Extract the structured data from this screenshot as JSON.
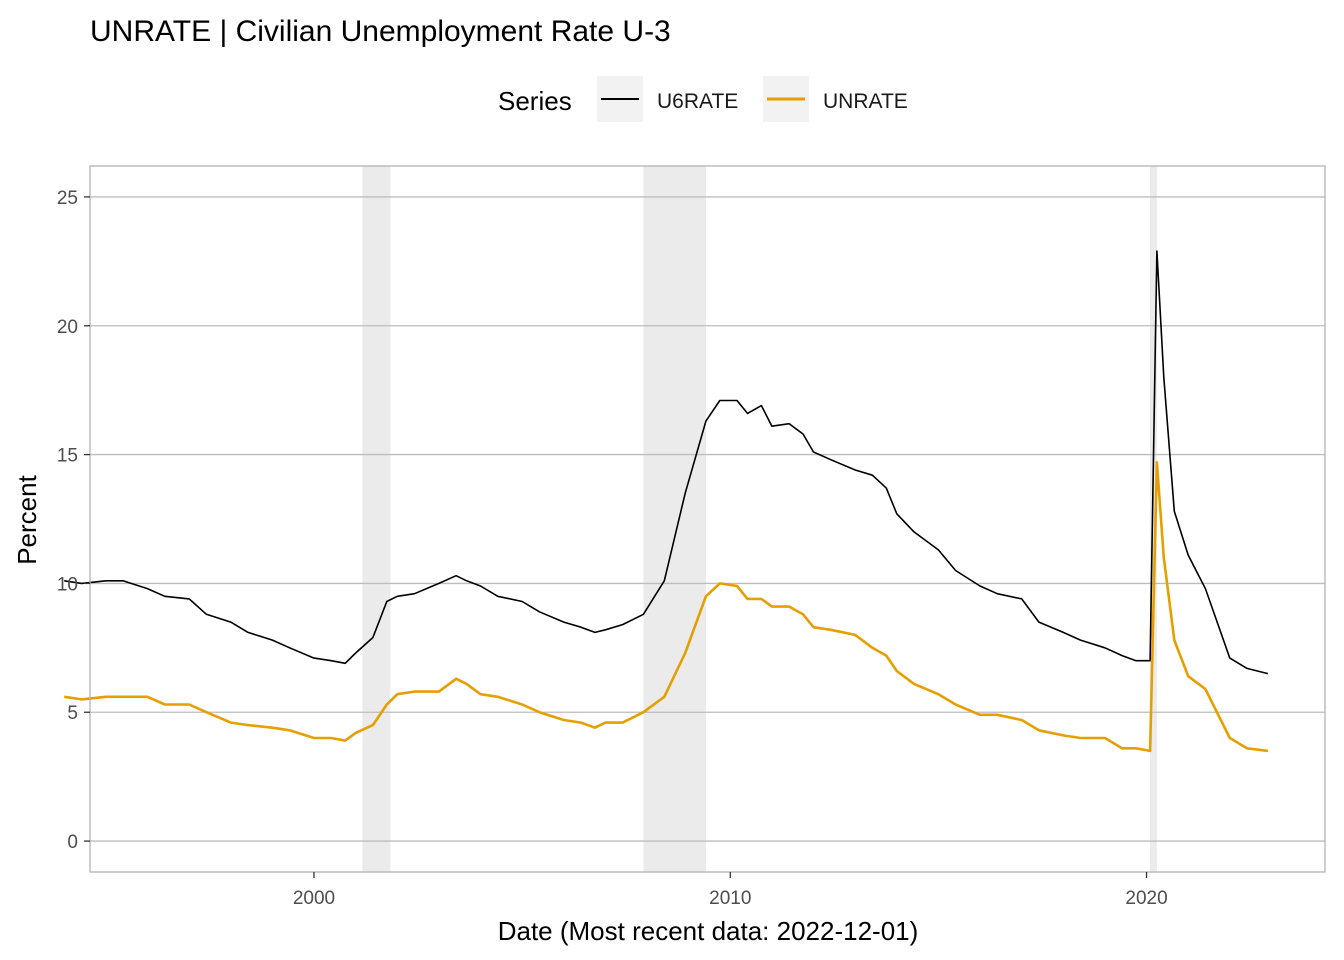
{
  "chart_data": {
    "type": "line",
    "title": "UNRATE | Civilian Unemployment Rate U-3",
    "xlabel": "Date (Most recent data: 2022-12-01)",
    "ylabel": "Percent",
    "legend": {
      "title": "Series",
      "placement": "top"
    },
    "xlim": [
      "1994-08-15",
      "2024-04-15"
    ],
    "ylim": [
      -1.2,
      26.2
    ],
    "x_ticks": [
      {
        "date": "2000-01-01",
        "label": "2000"
      },
      {
        "date": "2010-01-01",
        "label": "2010"
      },
      {
        "date": "2020-01-01",
        "label": "2020"
      }
    ],
    "y_ticks": [
      0,
      5,
      10,
      15,
      20,
      25
    ],
    "grid": true,
    "recessions": [
      {
        "start": "2001-03-01",
        "end": "2001-11-01"
      },
      {
        "start": "2007-12-01",
        "end": "2009-06-01"
      },
      {
        "start": "2020-02-01",
        "end": "2020-04-01"
      }
    ],
    "series": [
      {
        "name": "U6RATE",
        "color": "#000000",
        "points": [
          [
            "1994-01-01",
            10.1
          ],
          [
            "1994-06-01",
            10.0
          ],
          [
            "1995-01-01",
            10.1
          ],
          [
            "1995-06-01",
            10.1
          ],
          [
            "1996-01-01",
            9.8
          ],
          [
            "1996-06-01",
            9.5
          ],
          [
            "1997-01-01",
            9.4
          ],
          [
            "1997-06-01",
            8.8
          ],
          [
            "1998-01-01",
            8.5
          ],
          [
            "1998-06-01",
            8.1
          ],
          [
            "1999-01-01",
            7.8
          ],
          [
            "1999-06-01",
            7.5
          ],
          [
            "2000-01-01",
            7.1
          ],
          [
            "2000-06-01",
            7.0
          ],
          [
            "2000-10-01",
            6.9
          ],
          [
            "2001-01-01",
            7.3
          ],
          [
            "2001-06-01",
            7.9
          ],
          [
            "2001-10-01",
            9.3
          ],
          [
            "2002-01-01",
            9.5
          ],
          [
            "2002-06-01",
            9.6
          ],
          [
            "2003-01-01",
            10.0
          ],
          [
            "2003-06-01",
            10.3
          ],
          [
            "2003-09-01",
            10.1
          ],
          [
            "2004-01-01",
            9.9
          ],
          [
            "2004-06-01",
            9.5
          ],
          [
            "2005-01-01",
            9.3
          ],
          [
            "2005-06-01",
            8.9
          ],
          [
            "2006-01-01",
            8.5
          ],
          [
            "2006-06-01",
            8.3
          ],
          [
            "2006-10-01",
            8.1
          ],
          [
            "2007-01-01",
            8.2
          ],
          [
            "2007-06-01",
            8.4
          ],
          [
            "2007-12-01",
            8.8
          ],
          [
            "2008-06-01",
            10.1
          ],
          [
            "2008-12-01",
            13.5
          ],
          [
            "2009-06-01",
            16.3
          ],
          [
            "2009-10-01",
            17.1
          ],
          [
            "2010-03-01",
            17.1
          ],
          [
            "2010-06-01",
            16.6
          ],
          [
            "2010-10-01",
            16.9
          ],
          [
            "2011-01-01",
            16.1
          ],
          [
            "2011-06-01",
            16.2
          ],
          [
            "2011-10-01",
            15.8
          ],
          [
            "2012-01-01",
            15.1
          ],
          [
            "2012-06-01",
            14.8
          ],
          [
            "2013-01-01",
            14.4
          ],
          [
            "2013-06-01",
            14.2
          ],
          [
            "2013-10-01",
            13.7
          ],
          [
            "2014-01-01",
            12.7
          ],
          [
            "2014-06-01",
            12.0
          ],
          [
            "2015-01-01",
            11.3
          ],
          [
            "2015-06-01",
            10.5
          ],
          [
            "2016-01-01",
            9.9
          ],
          [
            "2016-06-01",
            9.6
          ],
          [
            "2017-01-01",
            9.4
          ],
          [
            "2017-06-01",
            8.5
          ],
          [
            "2018-01-01",
            8.1
          ],
          [
            "2018-06-01",
            7.8
          ],
          [
            "2019-01-01",
            7.5
          ],
          [
            "2019-06-01",
            7.2
          ],
          [
            "2019-10-01",
            7.0
          ],
          [
            "2020-02-01",
            7.0
          ],
          [
            "2020-04-01",
            22.9
          ],
          [
            "2020-06-01",
            18.0
          ],
          [
            "2020-09-01",
            12.8
          ],
          [
            "2021-01-01",
            11.1
          ],
          [
            "2021-06-01",
            9.8
          ],
          [
            "2022-01-01",
            7.1
          ],
          [
            "2022-06-01",
            6.7
          ],
          [
            "2022-12-01",
            6.5
          ]
        ]
      },
      {
        "name": "UNRATE",
        "color": "#E69F00",
        "points": [
          [
            "1994-01-01",
            5.6
          ],
          [
            "1994-06-01",
            5.5
          ],
          [
            "1995-01-01",
            5.6
          ],
          [
            "1995-06-01",
            5.6
          ],
          [
            "1996-01-01",
            5.6
          ],
          [
            "1996-06-01",
            5.3
          ],
          [
            "1997-01-01",
            5.3
          ],
          [
            "1997-06-01",
            5.0
          ],
          [
            "1998-01-01",
            4.6
          ],
          [
            "1998-06-01",
            4.5
          ],
          [
            "1999-01-01",
            4.4
          ],
          [
            "1999-06-01",
            4.3
          ],
          [
            "2000-01-01",
            4.0
          ],
          [
            "2000-06-01",
            4.0
          ],
          [
            "2000-10-01",
            3.9
          ],
          [
            "2001-01-01",
            4.2
          ],
          [
            "2001-06-01",
            4.5
          ],
          [
            "2001-10-01",
            5.3
          ],
          [
            "2002-01-01",
            5.7
          ],
          [
            "2002-06-01",
            5.8
          ],
          [
            "2003-01-01",
            5.8
          ],
          [
            "2003-06-01",
            6.3
          ],
          [
            "2003-09-01",
            6.1
          ],
          [
            "2004-01-01",
            5.7
          ],
          [
            "2004-06-01",
            5.6
          ],
          [
            "2005-01-01",
            5.3
          ],
          [
            "2005-06-01",
            5.0
          ],
          [
            "2006-01-01",
            4.7
          ],
          [
            "2006-06-01",
            4.6
          ],
          [
            "2006-10-01",
            4.4
          ],
          [
            "2007-01-01",
            4.6
          ],
          [
            "2007-06-01",
            4.6
          ],
          [
            "2007-12-01",
            5.0
          ],
          [
            "2008-06-01",
            5.6
          ],
          [
            "2008-12-01",
            7.3
          ],
          [
            "2009-06-01",
            9.5
          ],
          [
            "2009-10-01",
            10.0
          ],
          [
            "2010-03-01",
            9.9
          ],
          [
            "2010-06-01",
            9.4
          ],
          [
            "2010-10-01",
            9.4
          ],
          [
            "2011-01-01",
            9.1
          ],
          [
            "2011-06-01",
            9.1
          ],
          [
            "2011-10-01",
            8.8
          ],
          [
            "2012-01-01",
            8.3
          ],
          [
            "2012-06-01",
            8.2
          ],
          [
            "2013-01-01",
            8.0
          ],
          [
            "2013-06-01",
            7.5
          ],
          [
            "2013-10-01",
            7.2
          ],
          [
            "2014-01-01",
            6.6
          ],
          [
            "2014-06-01",
            6.1
          ],
          [
            "2015-01-01",
            5.7
          ],
          [
            "2015-06-01",
            5.3
          ],
          [
            "2016-01-01",
            4.9
          ],
          [
            "2016-06-01",
            4.9
          ],
          [
            "2017-01-01",
            4.7
          ],
          [
            "2017-06-01",
            4.3
          ],
          [
            "2018-01-01",
            4.1
          ],
          [
            "2018-06-01",
            4.0
          ],
          [
            "2019-01-01",
            4.0
          ],
          [
            "2019-06-01",
            3.6
          ],
          [
            "2019-10-01",
            3.6
          ],
          [
            "2020-02-01",
            3.5
          ],
          [
            "2020-04-01",
            14.7
          ],
          [
            "2020-06-01",
            11.0
          ],
          [
            "2020-09-01",
            7.8
          ],
          [
            "2021-01-01",
            6.4
          ],
          [
            "2021-06-01",
            5.9
          ],
          [
            "2022-01-01",
            4.0
          ],
          [
            "2022-06-01",
            3.6
          ],
          [
            "2022-12-01",
            3.5
          ]
        ]
      }
    ]
  }
}
